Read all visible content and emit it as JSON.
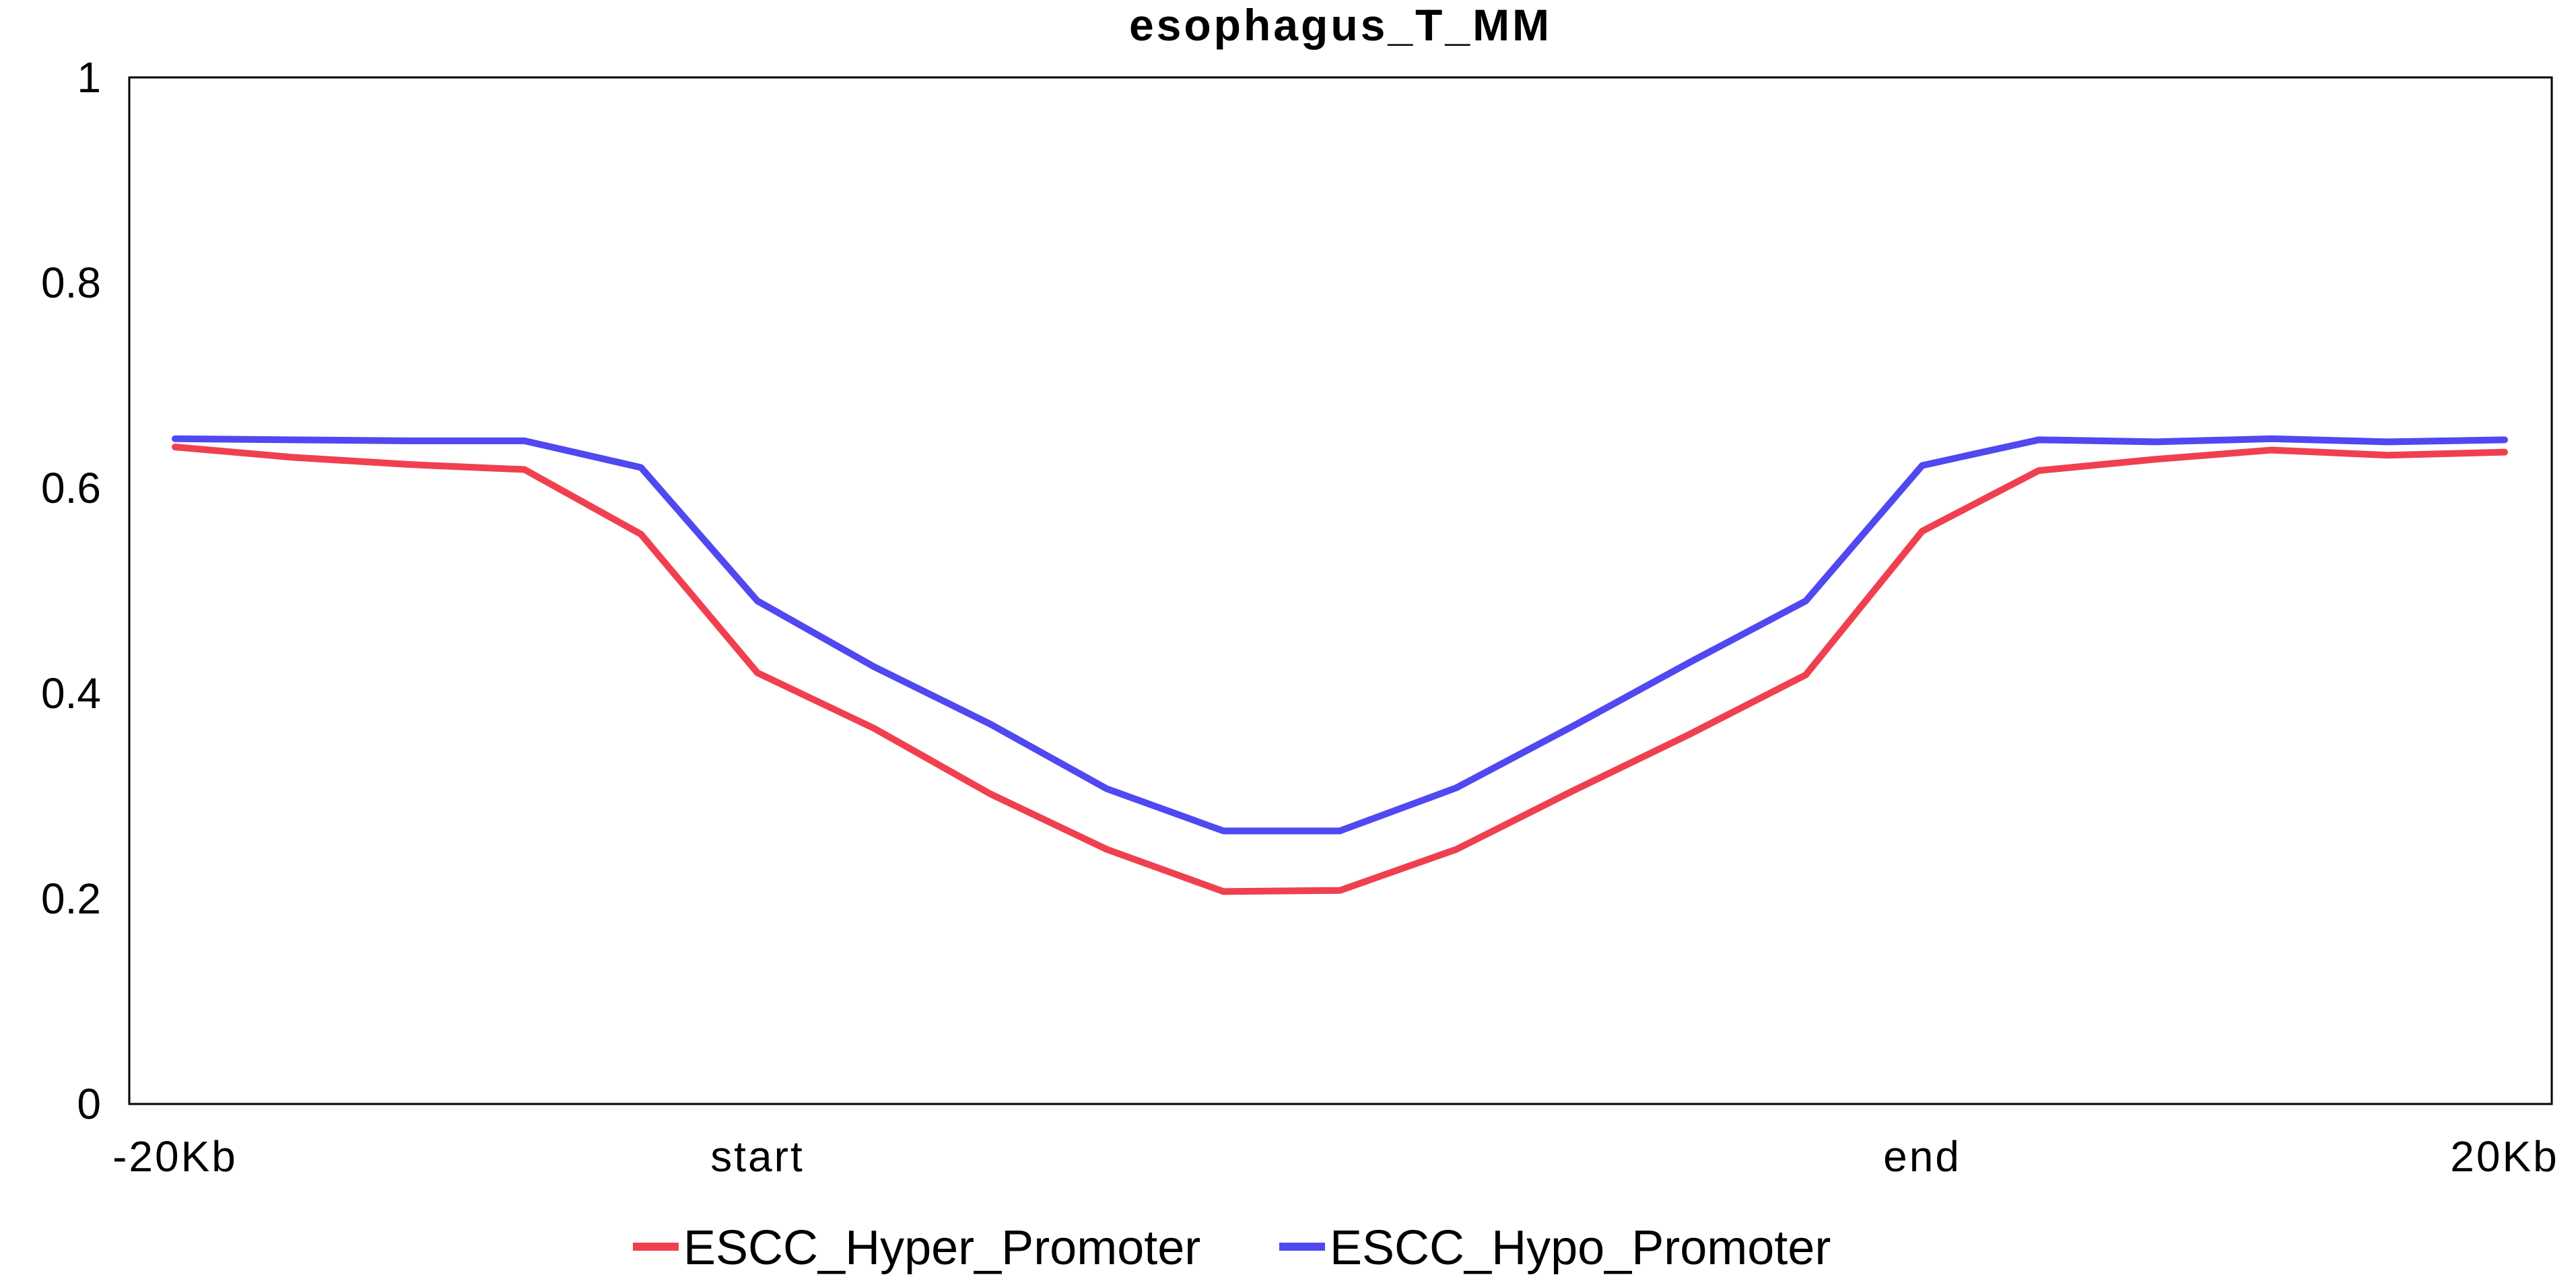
{
  "chart_data": {
    "type": "line",
    "title": "esophagus_T_MM",
    "xlabel": "",
    "ylabel": "",
    "ylim": [
      0,
      1
    ],
    "y_ticks": [
      "0",
      "0.2",
      "0.4",
      "0.6",
      "0.8",
      "1"
    ],
    "x_ticks": [
      {
        "label": "-20Kb",
        "index": 0
      },
      {
        "label": "start",
        "index": 5
      },
      {
        "label": "end",
        "index": 15
      },
      {
        "label": "20Kb",
        "index": 20
      }
    ],
    "x_count": 21,
    "grid": false,
    "legend_position": "bottom-center",
    "series": [
      {
        "name": "ESCC_Hyper_Promoter",
        "color": "#f0404f",
        "values": [
          0.64,
          0.63,
          0.623,
          0.618,
          0.555,
          0.42,
          0.366,
          0.302,
          0.248,
          0.207,
          0.208,
          0.248,
          0.305,
          0.36,
          0.418,
          0.558,
          0.617,
          0.628,
          0.637,
          0.632,
          0.635
        ]
      },
      {
        "name": "ESCC_Hypo_Promoter",
        "color": "#5048f0",
        "values": [
          0.648,
          0.647,
          0.646,
          0.646,
          0.62,
          0.49,
          0.426,
          0.37,
          0.307,
          0.266,
          0.266,
          0.308,
          0.368,
          0.43,
          0.49,
          0.622,
          0.647,
          0.645,
          0.648,
          0.645,
          0.647
        ]
      }
    ]
  }
}
